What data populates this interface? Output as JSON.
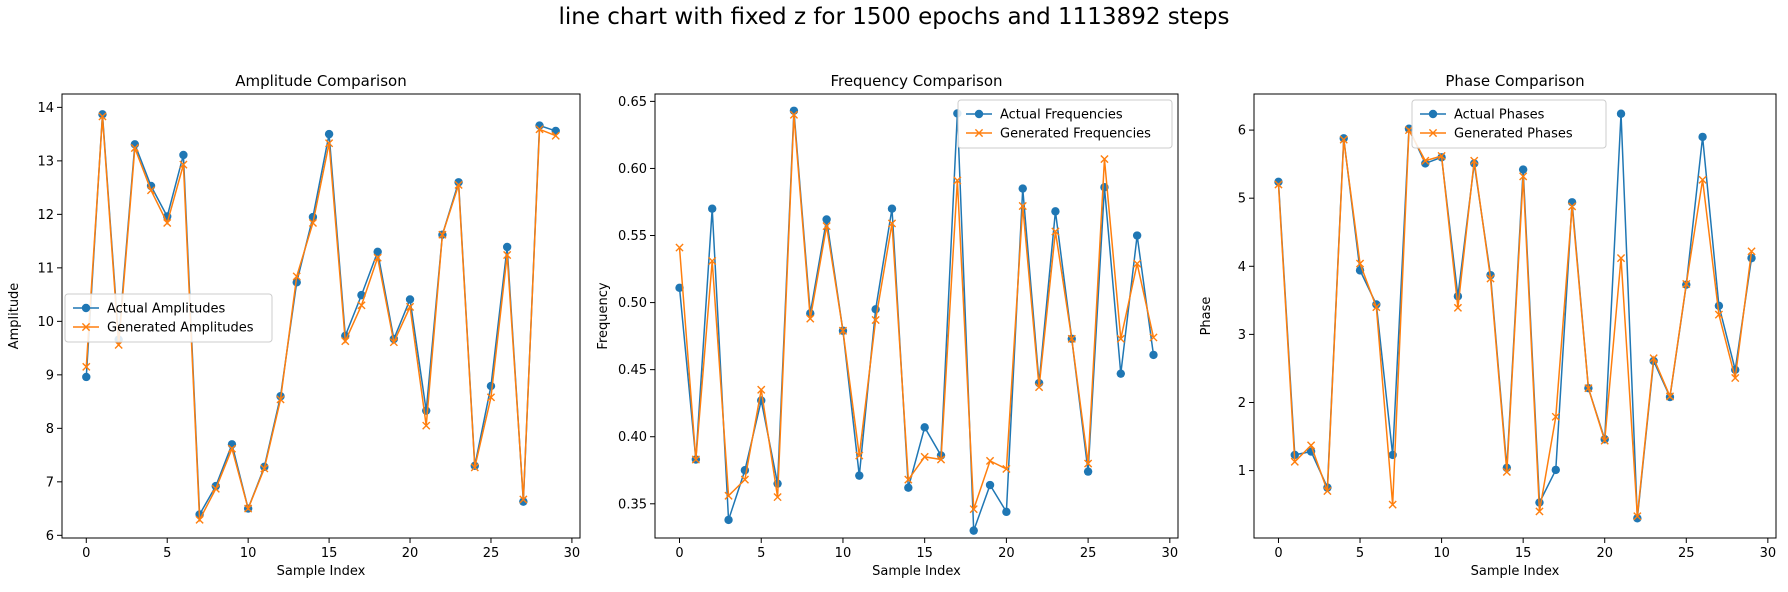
{
  "figure": {
    "title": "line chart with fixed z for 1500 epochs and 1113892 steps"
  },
  "colors": {
    "actual": "#1f77b4",
    "generated": "#ff7f0e"
  },
  "chart_data": [
    {
      "type": "line",
      "title": "Amplitude Comparison",
      "xlabel": "Sample Index",
      "ylabel": "Amplitude",
      "xlim": [
        -1.5,
        30.5
      ],
      "ylim": [
        5.95,
        14.25
      ],
      "xticks": [
        0,
        5,
        10,
        15,
        20,
        25,
        30
      ],
      "yticks": [
        6,
        7,
        8,
        9,
        10,
        11,
        12,
        13,
        14
      ],
      "legend_position": "center-left",
      "x": [
        0,
        1,
        2,
        3,
        4,
        5,
        6,
        7,
        8,
        9,
        10,
        11,
        12,
        13,
        14,
        15,
        16,
        17,
        18,
        19,
        20,
        21,
        22,
        23,
        24,
        25,
        26,
        27,
        28,
        29
      ],
      "series": [
        {
          "name": "Actual Amplitudes",
          "marker": "o",
          "values": [
            8.96,
            13.87,
            9.66,
            13.31,
            12.53,
            11.96,
            13.11,
            6.39,
            6.92,
            7.7,
            6.5,
            7.28,
            8.6,
            10.73,
            11.95,
            13.5,
            9.73,
            10.49,
            11.3,
            9.67,
            10.41,
            8.33,
            11.62,
            12.6,
            7.3,
            8.79,
            11.39,
            6.63,
            13.66,
            13.56
          ]
        },
        {
          "name": "Generated Amplitudes",
          "marker": "x",
          "values": [
            9.15,
            13.83,
            9.56,
            13.24,
            12.45,
            11.84,
            12.93,
            6.29,
            6.87,
            7.62,
            6.5,
            7.25,
            8.54,
            10.84,
            11.84,
            13.33,
            9.63,
            10.3,
            11.19,
            9.61,
            10.27,
            8.05,
            11.62,
            12.55,
            7.27,
            8.58,
            11.24,
            6.67,
            13.59,
            13.47
          ]
        }
      ]
    },
    {
      "type": "line",
      "title": "Frequency Comparison",
      "xlabel": "Sample Index",
      "ylabel": "Frequency",
      "xlim": [
        -1.5,
        30.5
      ],
      "ylim": [
        0.3245,
        0.6555
      ],
      "xticks": [
        0,
        5,
        10,
        15,
        20,
        25,
        30
      ],
      "yticks": [
        "0.35",
        "0.40",
        "0.45",
        "0.50",
        "0.55",
        "0.60",
        "0.65"
      ],
      "legend_position": "upper-right",
      "x": [
        0,
        1,
        2,
        3,
        4,
        5,
        6,
        7,
        8,
        9,
        10,
        11,
        12,
        13,
        14,
        15,
        16,
        17,
        18,
        19,
        20,
        21,
        22,
        23,
        24,
        25,
        26,
        27,
        28,
        29
      ],
      "series": [
        {
          "name": "Actual Frequencies",
          "marker": "o",
          "values": [
            0.511,
            0.383,
            0.57,
            0.338,
            0.375,
            0.427,
            0.365,
            0.643,
            0.492,
            0.562,
            0.479,
            0.371,
            0.495,
            0.57,
            0.362,
            0.407,
            0.386,
            0.641,
            0.33,
            0.364,
            0.344,
            0.585,
            0.44,
            0.568,
            0.473,
            0.374,
            0.586,
            0.447,
            0.55,
            0.461
          ]
        },
        {
          "name": "Generated Frequencies",
          "marker": "x",
          "values": [
            0.541,
            0.383,
            0.531,
            0.356,
            0.368,
            0.435,
            0.355,
            0.64,
            0.488,
            0.557,
            0.479,
            0.386,
            0.487,
            0.559,
            0.368,
            0.385,
            0.383,
            0.591,
            0.346,
            0.382,
            0.376,
            0.572,
            0.437,
            0.553,
            0.473,
            0.38,
            0.607,
            0.473,
            0.529,
            0.474
          ]
        }
      ]
    },
    {
      "type": "line",
      "title": "Phase Comparison",
      "xlabel": "Sample Index",
      "ylabel": "Phase",
      "xlim": [
        -1.5,
        30.5
      ],
      "ylim": [
        0.01,
        6.53
      ],
      "xticks": [
        0,
        5,
        10,
        15,
        20,
        25,
        30
      ],
      "yticks": [
        1,
        2,
        3,
        4,
        5,
        6
      ],
      "legend_position": "upper-center",
      "x": [
        0,
        1,
        2,
        3,
        4,
        5,
        6,
        7,
        8,
        9,
        10,
        11,
        12,
        13,
        14,
        15,
        16,
        17,
        18,
        19,
        20,
        21,
        22,
        23,
        24,
        25,
        26,
        27,
        28,
        29
      ],
      "series": [
        {
          "name": "Actual Phases",
          "marker": "o",
          "values": [
            5.24,
            1.23,
            1.28,
            0.75,
            5.88,
            3.94,
            3.44,
            1.23,
            6.02,
            5.51,
            5.6,
            3.56,
            5.51,
            3.87,
            1.04,
            5.42,
            0.53,
            1.01,
            4.94,
            2.21,
            1.46,
            6.24,
            0.3,
            2.61,
            2.08,
            3.73,
            5.9,
            3.42,
            2.48,
            4.12
          ]
        },
        {
          "name": "Generated Phases",
          "marker": "x",
          "values": [
            5.2,
            1.13,
            1.37,
            0.7,
            5.86,
            4.04,
            3.4,
            0.5,
            6.0,
            5.55,
            5.62,
            3.39,
            5.55,
            3.82,
            0.98,
            5.32,
            0.4,
            1.79,
            4.88,
            2.21,
            1.44,
            4.12,
            0.33,
            2.65,
            2.09,
            3.74,
            5.27,
            3.29,
            2.36,
            4.22
          ]
        }
      ]
    }
  ]
}
